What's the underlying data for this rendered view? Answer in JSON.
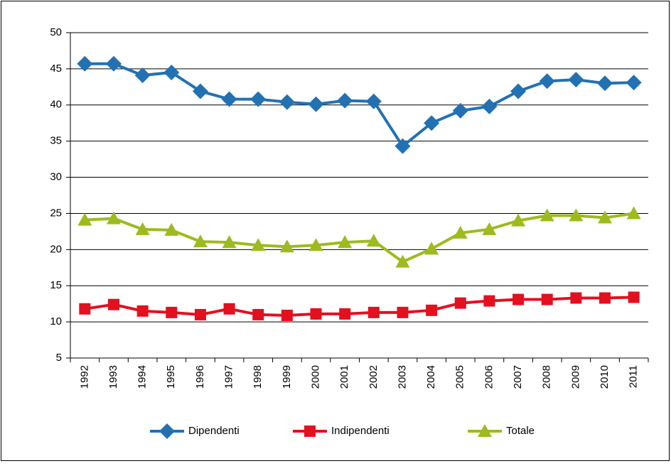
{
  "chart_data": {
    "type": "line",
    "categories": [
      "1992",
      "1993",
      "1994",
      "1995",
      "1996",
      "1997",
      "1998",
      "1999",
      "2000",
      "2001",
      "2002",
      "2003",
      "2004",
      "2005",
      "2006",
      "2007",
      "2008",
      "2009",
      "2010",
      "2011"
    ],
    "series": [
      {
        "name": "Dipendenti",
        "color": "#2271b3",
        "marker": "diamond",
        "values": [
          45.7,
          45.7,
          44.1,
          44.5,
          41.9,
          40.8,
          40.8,
          40.4,
          40.1,
          40.6,
          40.5,
          34.3,
          37.5,
          39.2,
          39.8,
          41.9,
          43.3,
          43.5,
          43.0,
          43.1
        ]
      },
      {
        "name": "Indipendenti",
        "color": "#e3101f",
        "marker": "square",
        "values": [
          11.8,
          12.4,
          11.5,
          11.3,
          11.0,
          11.8,
          11.0,
          10.9,
          11.1,
          11.1,
          11.3,
          11.3,
          11.6,
          12.6,
          12.9,
          13.1,
          13.1,
          13.3,
          13.3,
          13.4
        ]
      },
      {
        "name": "Totale",
        "color": "#9dbb1d",
        "marker": "triangle",
        "values": [
          24.1,
          24.3,
          22.8,
          22.7,
          21.1,
          21.0,
          20.6,
          20.4,
          20.6,
          21.0,
          21.2,
          18.3,
          20.1,
          22.3,
          22.8,
          24.0,
          24.7,
          24.7,
          24.4,
          25.0
        ]
      }
    ],
    "ylim": [
      5,
      50
    ],
    "yticks": [
      5,
      10,
      15,
      20,
      25,
      30,
      35,
      40,
      45,
      50
    ],
    "grid": true,
    "legend": "bottom"
  }
}
